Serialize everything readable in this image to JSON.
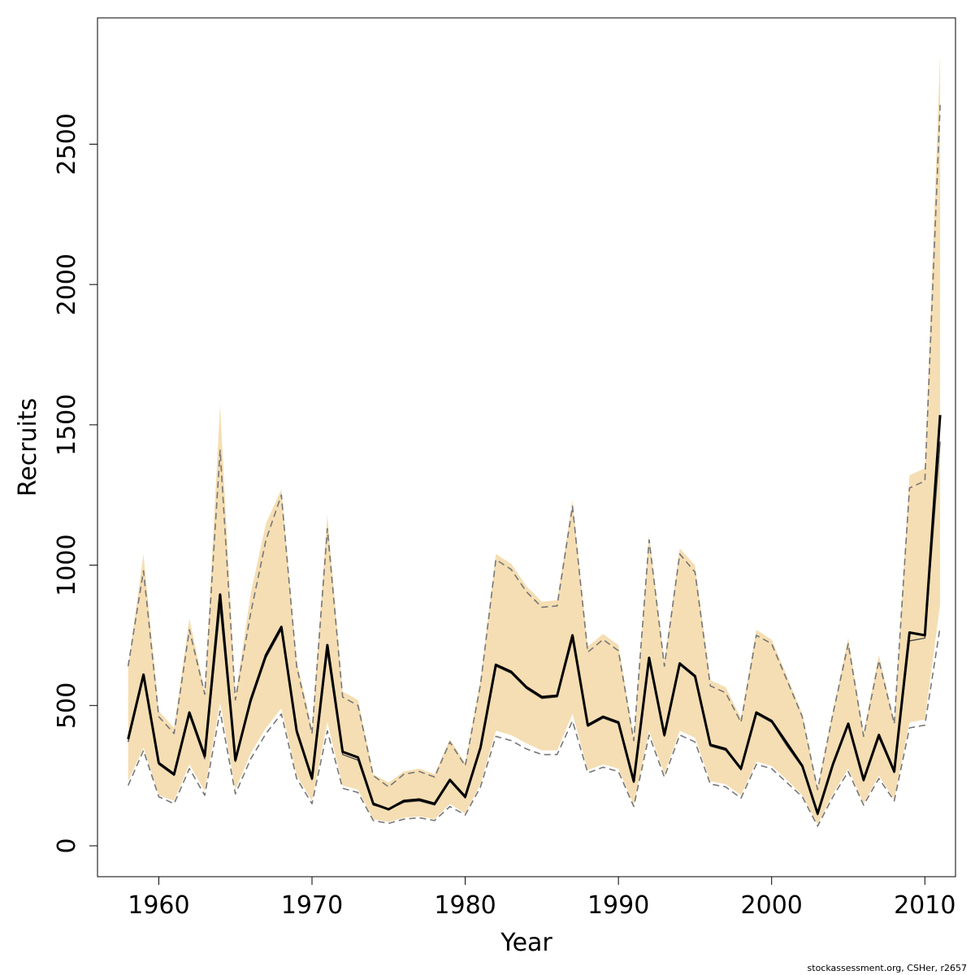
{
  "chart_data": {
    "type": "line",
    "xlabel": "Year",
    "ylabel": "Recruits",
    "xlim": [
      1956,
      2012
    ],
    "ylim": [
      -110,
      2950
    ],
    "x_ticks": [
      1960,
      1970,
      1980,
      1990,
      2000,
      2010
    ],
    "x_tick_labels": [
      "1960",
      "1970",
      "1980",
      "1990",
      "2000",
      "2010"
    ],
    "y_ticks": [
      0,
      500,
      1000,
      1500,
      2000,
      2500
    ],
    "y_tick_labels": [
      "0",
      "500",
      "1000",
      "1500",
      "2000",
      "2500"
    ],
    "grid": false,
    "colors": {
      "band_fill": "#f5deb3",
      "main_line": "#000000",
      "bound_line": "#777777"
    },
    "x": [
      1958,
      1959,
      1960,
      1961,
      1962,
      1963,
      1964,
      1965,
      1966,
      1967,
      1968,
      1969,
      1970,
      1971,
      1972,
      1973,
      1974,
      1975,
      1976,
      1977,
      1978,
      1979,
      1980,
      1981,
      1982,
      1983,
      1984,
      1985,
      1986,
      1987,
      1988,
      1989,
      1990,
      1991,
      1992,
      1993,
      1994,
      1995,
      1996,
      1997,
      1998,
      1999,
      2000,
      2001,
      2002,
      2003,
      2004,
      2005,
      2006,
      2007,
      2008,
      2009,
      2010,
      2011
    ],
    "series": [
      {
        "values": [
          380,
          610,
          295,
          255,
          475,
          320,
          895,
          305,
          520,
          680,
          780,
          410,
          240,
          715,
          335,
          315,
          150,
          130,
          160,
          165,
          150,
          235,
          175,
          350,
          645,
          620,
          565,
          530,
          535,
          750,
          430,
          460,
          440,
          230,
          670,
          395,
          650,
          605,
          360,
          345,
          275,
          475,
          445,
          365,
          285,
          115,
          290,
          435,
          235,
          395,
          265,
          760,
          750,
          1535
        ]
      },
      {
        "values": [
          370,
          600,
          290,
          250,
          465,
          310,
          850,
          300,
          510,
          670,
          770,
          400,
          235,
          690,
          325,
          305,
          145,
          130,
          155,
          160,
          145,
          230,
          170,
          345,
          640,
          615,
          560,
          525,
          530,
          735,
          425,
          455,
          435,
          225,
          660,
          390,
          645,
          600,
          355,
          340,
          270,
          470,
          440,
          355,
          280,
          110,
          285,
          430,
          230,
          385,
          260,
          730,
          740,
          1440
        ]
      },
      {
        "values": [
          640,
          980,
          460,
          400,
          770,
          540,
          1410,
          520,
          830,
          1090,
          1250,
          640,
          400,
          1130,
          530,
          500,
          250,
          210,
          255,
          265,
          245,
          370,
          285,
          575,
          1020,
          985,
          905,
          850,
          855,
          1210,
          690,
          735,
          695,
          375,
          1090,
          640,
          1040,
          975,
          570,
          545,
          440,
          750,
          720,
          590,
          460,
          200,
          470,
          720,
          390,
          660,
          435,
          1275,
          1300,
          2640
        ]
      },
      {
        "values": [
          215,
          340,
          175,
          150,
          275,
          180,
          480,
          185,
          310,
          400,
          470,
          240,
          150,
          410,
          205,
          190,
          90,
          80,
          95,
          100,
          90,
          140,
          110,
          210,
          390,
          375,
          345,
          325,
          325,
          445,
          260,
          280,
          265,
          140,
          395,
          245,
          395,
          370,
          220,
          210,
          170,
          290,
          275,
          225,
          175,
          70,
          175,
          265,
          145,
          240,
          160,
          420,
          430,
          780
        ]
      }
    ],
    "band_upper": [
      640,
      1040,
      480,
      420,
      810,
      550,
      1570,
      530,
      900,
      1150,
      1270,
      660,
      420,
      1180,
      550,
      520,
      255,
      225,
      265,
      275,
      255,
      380,
      295,
      590,
      1040,
      1005,
      925,
      870,
      875,
      1230,
      710,
      755,
      715,
      385,
      1110,
      655,
      1060,
      1000,
      590,
      565,
      455,
      770,
      735,
      605,
      470,
      205,
      480,
      740,
      400,
      680,
      445,
      1320,
      1345,
      2820
    ],
    "band_lower": [
      230,
      350,
      180,
      160,
      290,
      195,
      510,
      200,
      330,
      420,
      490,
      250,
      160,
      440,
      215,
      200,
      95,
      85,
      100,
      105,
      95,
      150,
      115,
      220,
      410,
      395,
      365,
      340,
      340,
      470,
      270,
      290,
      275,
      145,
      410,
      255,
      410,
      385,
      230,
      220,
      180,
      300,
      285,
      235,
      180,
      75,
      185,
      275,
      150,
      250,
      165,
      440,
      450,
      860
    ]
  },
  "footnote": "stockassessment.org, CSHer, r2657"
}
